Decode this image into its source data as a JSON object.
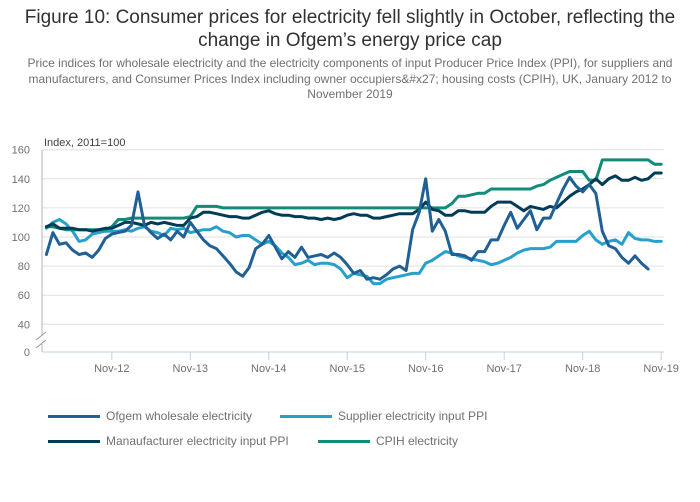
{
  "title": "Figure 10: Consumer prices for electricity fell slightly in October, reflecting the change in Ofgem’s energy price cap",
  "subtitle": "Price indices for wholesale electricity and the electricity components of input Producer Price Index (PPI), for suppliers and manufacturers, and Consumer Prices Index including owner occupiers&#x27; housing costs (CPIH), UK, January 2012 to November 2019",
  "chart_data": {
    "type": "line",
    "title": "Figure 10: Consumer prices for electricity fell slightly in October, reflecting the change in Ofgem’s energy price cap",
    "ylabel": "Index, 2011=100",
    "xlabel": "",
    "x_start": "Jan-12",
    "x_end": "Nov-19",
    "x_ticks": [
      "Nov-12",
      "Nov-13",
      "Nov-14",
      "Nov-15",
      "Nov-16",
      "Nov-17",
      "Nov-18",
      "Nov-19"
    ],
    "x_tick_months": [
      10,
      22,
      34,
      46,
      58,
      70,
      82,
      94
    ],
    "y_ticks": [
      0,
      40,
      60,
      80,
      100,
      120,
      140,
      160
    ],
    "ylim": [
      0,
      160
    ],
    "y_axis_break": true,
    "grid": true,
    "legend_position": "bottom",
    "series": [
      {
        "name": "Ofgem wholesale electricity",
        "color": "#206095",
        "values": [
          88,
          103,
          95,
          96,
          91,
          88,
          89,
          86,
          91,
          99,
          102,
          103,
          104,
          108,
          131,
          108,
          103,
          99,
          102,
          98,
          104,
          100,
          110,
          104,
          98,
          94,
          92,
          87,
          82,
          76,
          73,
          79,
          92,
          95,
          101,
          93,
          85,
          90,
          86,
          93,
          86,
          87,
          88,
          86,
          89,
          86,
          81,
          75,
          77,
          71,
          72,
          71,
          74,
          78,
          80,
          77,
          105,
          117,
          140,
          104,
          112,
          104,
          88,
          88,
          87,
          84,
          90,
          90,
          98,
          98,
          108,
          117,
          106,
          112,
          118,
          105,
          113,
          113,
          123,
          133,
          141,
          135,
          131,
          136,
          130,
          104,
          94,
          92,
          86,
          82,
          87,
          82,
          78,
          null,
          null
        ]
      },
      {
        "name": "Supplier electricity input PPI",
        "color": "#27a0cc",
        "values": [
          106,
          110,
          112,
          109,
          104,
          97,
          98,
          102,
          103,
          104,
          104,
          104,
          105,
          104,
          106,
          107,
          104,
          103,
          101,
          106,
          105,
          106,
          103,
          104,
          105,
          105,
          107,
          104,
          103,
          100,
          101,
          101,
          98,
          95,
          97,
          94,
          89,
          86,
          81,
          82,
          84,
          81,
          82,
          82,
          81,
          78,
          72,
          75,
          74,
          73,
          68,
          68,
          71,
          72,
          73,
          74,
          75,
          75,
          82,
          84,
          87,
          90,
          89,
          87,
          86,
          85,
          84,
          83,
          81,
          82,
          84,
          86,
          89,
          91,
          92,
          92,
          92,
          93,
          97,
          97,
          97,
          97,
          101,
          104,
          98,
          95,
          97,
          98,
          95,
          103,
          99,
          98,
          98,
          97,
          97
        ]
      },
      {
        "name": "Manaufacturer electricity input PPI",
        "color": "#003c57",
        "values": [
          107,
          109,
          106,
          106,
          106,
          105,
          105,
          104,
          105,
          106,
          106,
          108,
          110,
          110,
          109,
          108,
          110,
          109,
          110,
          109,
          108,
          108,
          113,
          114,
          117,
          117,
          116,
          115,
          114,
          114,
          113,
          113,
          115,
          117,
          118,
          116,
          115,
          115,
          114,
          114,
          113,
          113,
          112,
          113,
          112,
          113,
          115,
          116,
          115,
          115,
          113,
          113,
          114,
          115,
          116,
          116,
          116,
          119,
          124,
          119,
          118,
          115,
          115,
          118,
          118,
          117,
          117,
          117,
          121,
          124,
          124,
          124,
          121,
          118,
          121,
          120,
          119,
          121,
          120,
          124,
          128,
          131,
          133,
          136,
          140,
          136,
          140,
          142,
          139,
          139,
          141,
          139,
          140,
          144,
          144
        ]
      },
      {
        "name": "CPIH electricity",
        "color": "#118c7b",
        "values": [
          107,
          107,
          106,
          105,
          105,
          105,
          105,
          105,
          105,
          105,
          107,
          112,
          112,
          113,
          113,
          113,
          113,
          113,
          113,
          113,
          113,
          113,
          114,
          121,
          121,
          121,
          121,
          120,
          120,
          120,
          120,
          120,
          120,
          120,
          120,
          120,
          120,
          120,
          120,
          120,
          120,
          120,
          120,
          120,
          120,
          120,
          120,
          120,
          120,
          120,
          120,
          120,
          120,
          120,
          120,
          120,
          120,
          120,
          120,
          120,
          120,
          120,
          123,
          128,
          128,
          129,
          130,
          130,
          133,
          133,
          133,
          133,
          133,
          133,
          133,
          135,
          136,
          139,
          141,
          143,
          145,
          145,
          145,
          139,
          139,
          153,
          153,
          153,
          153,
          153,
          153,
          153,
          153,
          150,
          150
        ]
      }
    ]
  }
}
